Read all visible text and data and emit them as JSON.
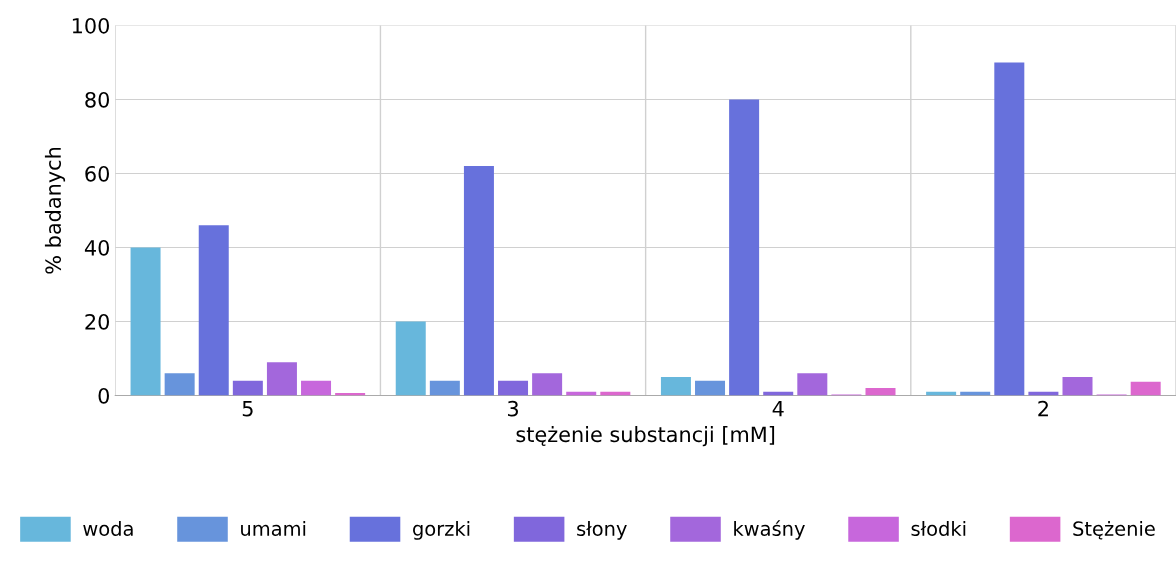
{
  "chart_data": {
    "type": "bar",
    "xlabel": "stężenie substancji [mM]",
    "ylabel": "% badanych",
    "categories": [
      "5",
      "3",
      "4",
      "2"
    ],
    "series": [
      {
        "name": "woda",
        "color": "#67b7dc",
        "values": [
          40,
          20,
          5,
          1
        ]
      },
      {
        "name": "umami",
        "color": "#6794dc",
        "values": [
          6,
          4,
          4,
          1
        ]
      },
      {
        "name": "gorzki",
        "color": "#6771dc",
        "values": [
          46,
          62,
          80,
          90
        ]
      },
      {
        "name": "słony",
        "color": "#8067dc",
        "values": [
          4,
          4,
          1,
          1
        ]
      },
      {
        "name": "kwaśny",
        "color": "#a367dc",
        "values": [
          9,
          6,
          6,
          5
        ]
      },
      {
        "name": "słodki",
        "color": "#c767dc",
        "values": [
          4,
          1,
          0.3,
          0.3
        ]
      },
      {
        "name": "Stężenie",
        "color": "#dc67ce",
        "values": [
          0.7,
          1,
          2,
          3.7
        ]
      }
    ],
    "ylim": [
      0,
      100
    ],
    "yticks": [
      0,
      20,
      40,
      60,
      80,
      100
    ],
    "grid": true,
    "legend": "bottom"
  }
}
